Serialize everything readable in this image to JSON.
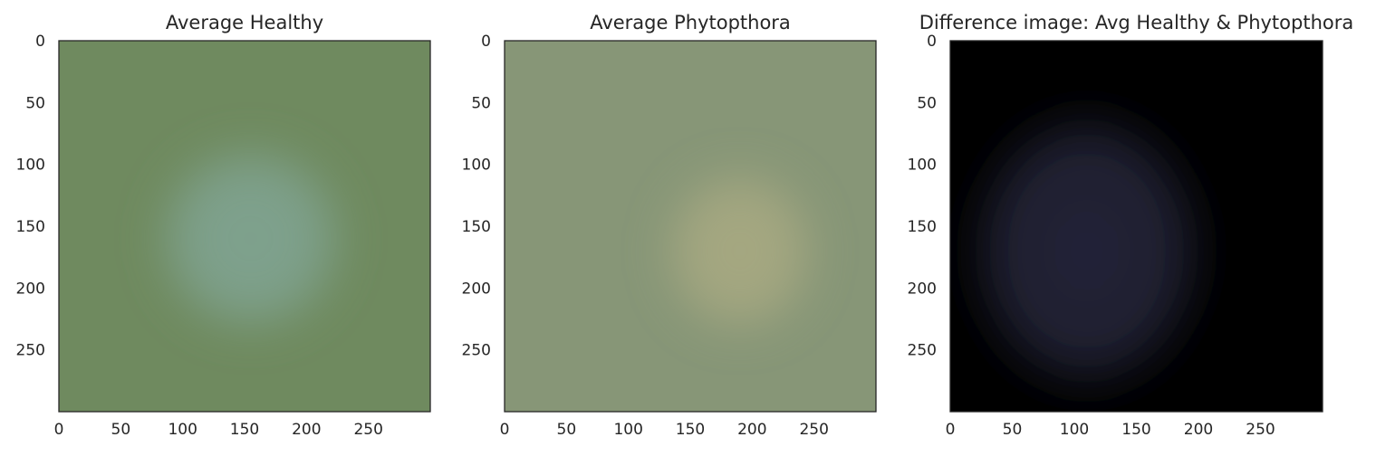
{
  "chart_data": [
    {
      "type": "heatmap",
      "title": "Average Healthy",
      "xlim": [
        0,
        300
      ],
      "ylim": [
        300,
        0
      ],
      "x_ticks": [
        0,
        50,
        100,
        150,
        200,
        250
      ],
      "y_ticks": [
        0,
        50,
        100,
        150,
        200,
        250
      ],
      "grid": false,
      "image": {
        "kind": "rgb",
        "base_color": "#6f8a5f",
        "feature": {
          "shape": "ellipse",
          "center": [
            155,
            160
          ],
          "radii": [
            80,
            80
          ],
          "color": "#7fa28f"
        }
      }
    },
    {
      "type": "heatmap",
      "title": "Average Phytopthora",
      "xlim": [
        0,
        300
      ],
      "ylim": [
        300,
        0
      ],
      "x_ticks": [
        0,
        50,
        100,
        150,
        200,
        250
      ],
      "y_ticks": [
        0,
        50,
        100,
        150,
        200,
        250
      ],
      "grid": false,
      "image": {
        "kind": "rgb",
        "base_color": "#879677",
        "feature": {
          "shape": "ellipse",
          "center": [
            190,
            170
          ],
          "radii": [
            65,
            70
          ],
          "color": "#a6a881"
        }
      }
    },
    {
      "type": "heatmap",
      "title": "Difference image: Avg Healthy & Phytopthora",
      "xlim": [
        0,
        300
      ],
      "ylim": [
        300,
        0
      ],
      "x_ticks": [
        0,
        50,
        100,
        150,
        200,
        250
      ],
      "y_ticks": [
        0,
        50,
        100,
        150,
        200,
        250
      ],
      "grid": false,
      "image": {
        "kind": "rgb",
        "base_color": "#000000",
        "feature": {
          "shape": "ellipse",
          "center": [
            110,
            170
          ],
          "radii": [
            100,
            120
          ],
          "color": "#232438"
        }
      }
    }
  ]
}
